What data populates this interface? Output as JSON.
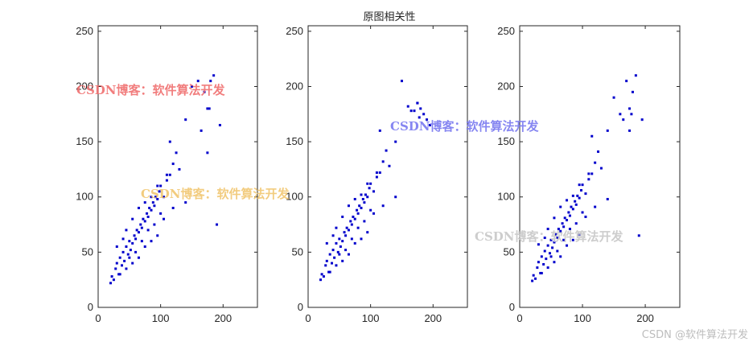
{
  "figure_title": "原图相关性",
  "watermark_text": "CSDN博客：软件算法开发",
  "footer_watermark": "CSDN @软件算法开发",
  "colors": {
    "marker": "#0000cc",
    "axes": "#262626",
    "watermark_red": "#f07070",
    "watermark_blue": "#7a7af0",
    "watermark_orange": "#f0c060",
    "watermark_gray": "#c8c8c8"
  },
  "chart_data": [
    {
      "type": "scatter",
      "title": "",
      "xlabel": "",
      "ylabel": "",
      "xlim": [
        0,
        255
      ],
      "ylim": [
        0,
        255
      ],
      "xticks": [
        0,
        100,
        200
      ],
      "yticks": [
        0,
        50,
        100,
        150,
        200,
        250
      ],
      "grid": false,
      "series": [
        {
          "x": [
            20,
            22,
            25,
            28,
            30,
            33,
            35,
            38,
            40,
            42,
            45,
            48,
            50,
            52,
            55,
            58,
            60,
            62,
            65,
            68,
            70,
            72,
            75,
            78,
            80,
            82,
            85,
            88,
            90,
            92,
            95,
            98,
            100,
            105,
            110,
            115,
            120,
            125,
            130,
            140,
            150,
            160,
            170,
            175,
            180,
            185,
            190,
            195,
            30,
            40,
            45,
            50,
            55,
            60,
            65,
            70,
            75,
            80,
            85,
            90,
            95,
            100,
            110,
            120,
            35,
            45,
            55,
            65,
            75,
            85,
            95,
            105,
            115,
            140,
            165,
            175,
            178
          ],
          "y": [
            22,
            28,
            25,
            35,
            40,
            30,
            45,
            38,
            50,
            42,
            55,
            48,
            60,
            52,
            58,
            65,
            62,
            70,
            68,
            75,
            72,
            80,
            78,
            85,
            82,
            90,
            88,
            95,
            92,
            100,
            98,
            105,
            110,
            100,
            115,
            120,
            130,
            140,
            125,
            170,
            200,
            205,
            195,
            180,
            205,
            210,
            75,
            165,
            55,
            62,
            70,
            45,
            80,
            50,
            90,
            60,
            95,
            70,
            100,
            75,
            110,
            85,
            120,
            90,
            30,
            35,
            40,
            45,
            55,
            60,
            65,
            80,
            150,
            95,
            160,
            140,
            180
          ]
        }
      ]
    },
    {
      "type": "scatter",
      "title": "",
      "xlabel": "",
      "ylabel": "",
      "xlim": [
        0,
        255
      ],
      "ylim": [
        0,
        255
      ],
      "xticks": [
        0,
        100,
        200
      ],
      "yticks": [
        0,
        50,
        100,
        150,
        200,
        250
      ],
      "grid": false,
      "series": [
        {
          "x": [
            20,
            22,
            25,
            28,
            30,
            33,
            35,
            38,
            40,
            42,
            45,
            48,
            50,
            52,
            55,
            58,
            60,
            62,
            65,
            68,
            70,
            72,
            75,
            78,
            80,
            82,
            85,
            88,
            90,
            92,
            95,
            98,
            100,
            105,
            110,
            115,
            120,
            125,
            130,
            140,
            150,
            160,
            170,
            175,
            180,
            185,
            190,
            195,
            30,
            40,
            45,
            50,
            55,
            60,
            65,
            70,
            75,
            80,
            85,
            90,
            95,
            100,
            110,
            120,
            35,
            45,
            55,
            65,
            75,
            85,
            95,
            105,
            115,
            140,
            165,
            175,
            178
          ],
          "y": [
            25,
            30,
            28,
            38,
            42,
            32,
            48,
            40,
            52,
            45,
            58,
            50,
            62,
            55,
            60,
            68,
            65,
            72,
            70,
            78,
            75,
            82,
            80,
            88,
            85,
            92,
            90,
            98,
            95,
            102,
            100,
            108,
            112,
            105,
            118,
            122,
            132,
            142,
            128,
            150,
            205,
            182,
            178,
            185,
            180,
            175,
            170,
            165,
            58,
            65,
            72,
            48,
            82,
            52,
            92,
            62,
            98,
            72,
            102,
            78,
            112,
            88,
            122,
            92,
            32,
            38,
            42,
            48,
            58,
            62,
            68,
            85,
            160,
            100,
            178,
            185,
            172
          ]
        }
      ]
    },
    {
      "type": "scatter",
      "title": "",
      "xlabel": "",
      "ylabel": "",
      "xlim": [
        0,
        255
      ],
      "ylim": [
        0,
        255
      ],
      "xticks": [
        0,
        100,
        200
      ],
      "yticks": [
        0,
        50,
        100,
        150,
        200,
        250
      ],
      "grid": false,
      "series": [
        {
          "x": [
            20,
            22,
            25,
            28,
            30,
            33,
            35,
            38,
            40,
            42,
            45,
            48,
            50,
            52,
            55,
            58,
            60,
            62,
            65,
            68,
            70,
            72,
            75,
            78,
            80,
            82,
            85,
            88,
            90,
            92,
            95,
            98,
            100,
            105,
            110,
            115,
            120,
            125,
            130,
            140,
            150,
            160,
            170,
            175,
            180,
            185,
            190,
            195,
            30,
            40,
            45,
            50,
            55,
            60,
            65,
            70,
            75,
            80,
            85,
            90,
            95,
            100,
            110,
            120,
            35,
            45,
            55,
            65,
            75,
            85,
            95,
            105,
            115,
            140,
            165,
            175,
            178
          ],
          "y": [
            24,
            29,
            26,
            36,
            41,
            31,
            46,
            39,
            51,
            44,
            56,
            49,
            61,
            54,
            59,
            66,
            63,
            71,
            69,
            76,
            73,
            81,
            79,
            86,
            83,
            91,
            89,
            96,
            93,
            101,
            99,
            106,
            111,
            103,
            116,
            121,
            131,
            141,
            126,
            160,
            190,
            175,
            205,
            160,
            195,
            210,
            65,
            170,
            57,
            63,
            71,
            46,
            81,
            51,
            91,
            61,
            97,
            71,
            101,
            76,
            111,
            86,
            121,
            91,
            31,
            36,
            41,
            46,
            56,
            61,
            66,
            82,
            155,
            98,
            170,
            180,
            175
          ]
        }
      ]
    }
  ]
}
